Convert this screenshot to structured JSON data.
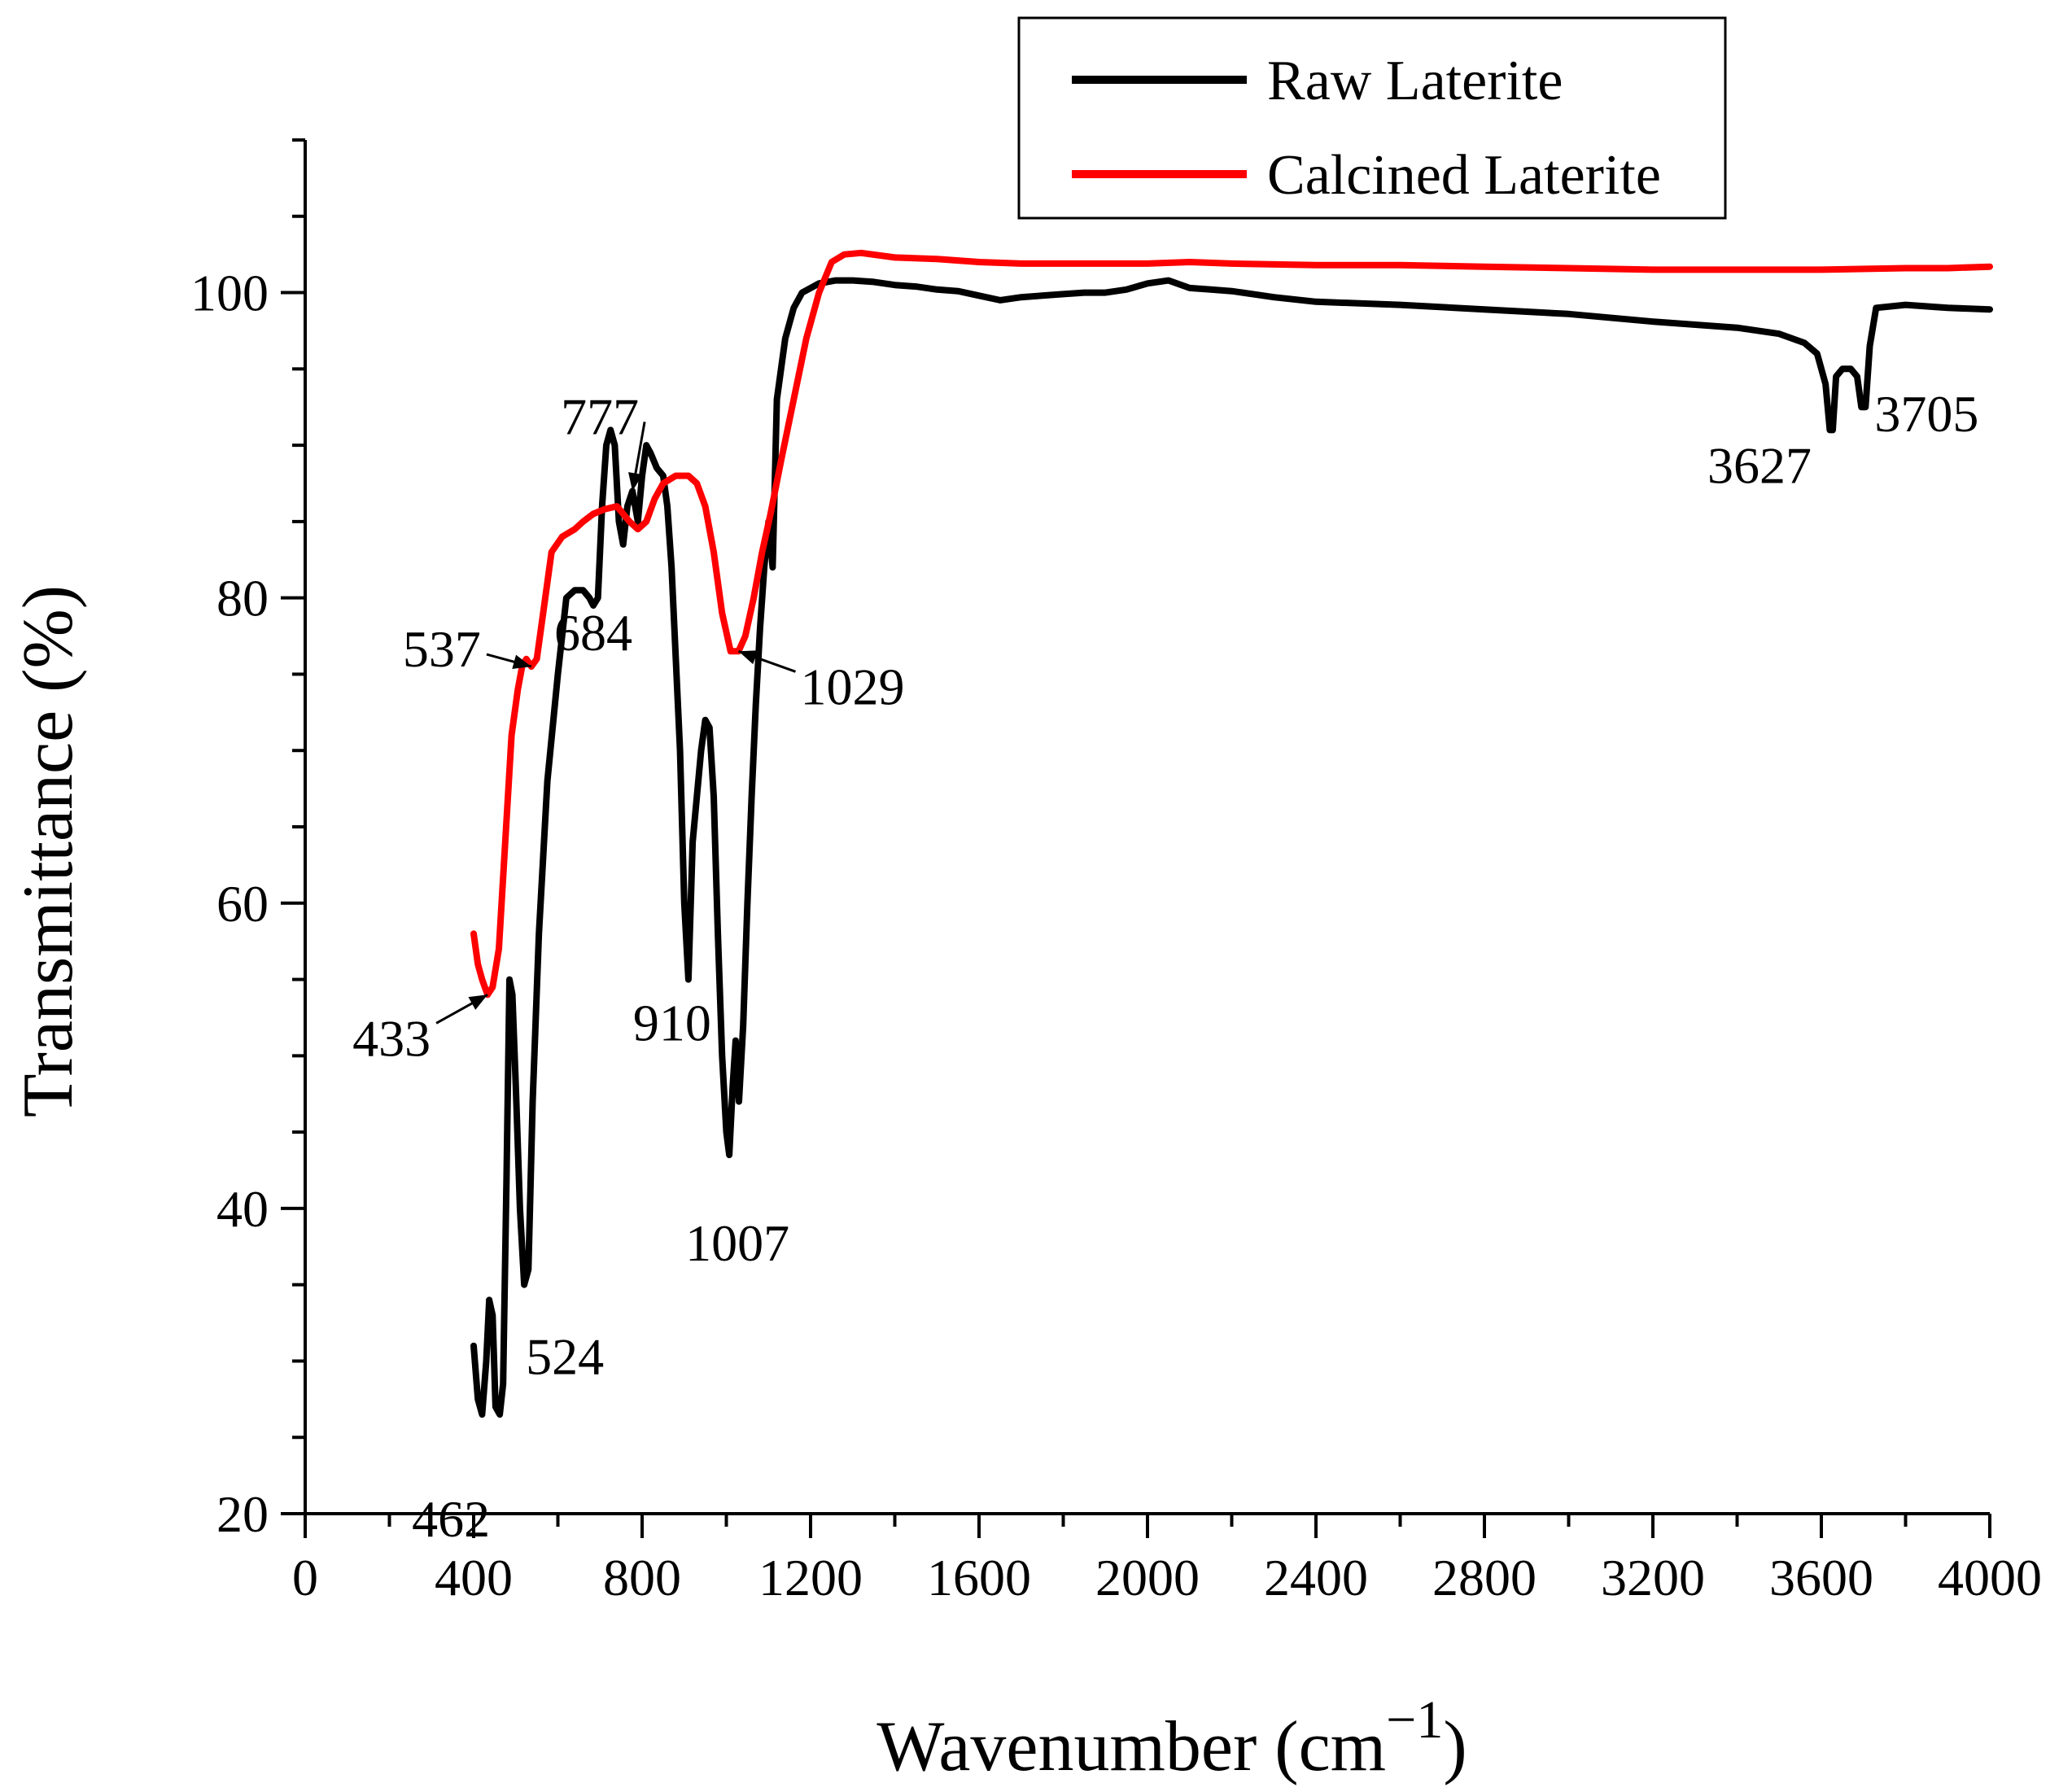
{
  "chart_data": {
    "type": "line",
    "title": "",
    "xlabel": "Wavenumber (cm",
    "xlabel_superscript": "−1",
    "xlabel_close": ")",
    "ylabel": "Transmittance (%)",
    "xlim": [
      0,
      4000
    ],
    "ylim": [
      20,
      110
    ],
    "xticks": [
      0,
      400,
      800,
      1200,
      1600,
      2000,
      2400,
      2800,
      3200,
      3600,
      4000
    ],
    "xtick_labels": [
      "0",
      "400",
      "800",
      "1200",
      "1600",
      "2000",
      "2400",
      "2800",
      "3200",
      "3600",
      "4000"
    ],
    "yticks": [
      20,
      40,
      60,
      80,
      100
    ],
    "ytick_labels": [
      "20",
      "40",
      "60",
      "80",
      "100"
    ],
    "grid": false,
    "legend_position": "top-right",
    "series": [
      {
        "name": "Raw Laterite",
        "color": "#000000",
        "points": [
          [
            400,
            31
          ],
          [
            410,
            27.5
          ],
          [
            420,
            26.5
          ],
          [
            430,
            30
          ],
          [
            437,
            34
          ],
          [
            445,
            33
          ],
          [
            452,
            27
          ],
          [
            462,
            26.5
          ],
          [
            470,
            28.5
          ],
          [
            478,
            42
          ],
          [
            485,
            55
          ],
          [
            492,
            54
          ],
          [
            500,
            48
          ],
          [
            510,
            40
          ],
          [
            520,
            35
          ],
          [
            530,
            36
          ],
          [
            540,
            47
          ],
          [
            555,
            58
          ],
          [
            575,
            68
          ],
          [
            600,
            75
          ],
          [
            620,
            80
          ],
          [
            640,
            80.5
          ],
          [
            660,
            80.5
          ],
          [
            675,
            80
          ],
          [
            684,
            79.5
          ],
          [
            695,
            80
          ],
          [
            705,
            86
          ],
          [
            715,
            90
          ],
          [
            725,
            91
          ],
          [
            735,
            90
          ],
          [
            745,
            85
          ],
          [
            755,
            83.5
          ],
          [
            765,
            86
          ],
          [
            777,
            87
          ],
          [
            790,
            85
          ],
          [
            800,
            88
          ],
          [
            810,
            90
          ],
          [
            820,
            89.5
          ],
          [
            835,
            88.5
          ],
          [
            850,
            88
          ],
          [
            860,
            86
          ],
          [
            870,
            82
          ],
          [
            880,
            76
          ],
          [
            890,
            70
          ],
          [
            900,
            60
          ],
          [
            910,
            55
          ],
          [
            920,
            64
          ],
          [
            930,
            67
          ],
          [
            940,
            70
          ],
          [
            950,
            72
          ],
          [
            960,
            71.5
          ],
          [
            970,
            67
          ],
          [
            980,
            58
          ],
          [
            990,
            50
          ],
          [
            1000,
            45
          ],
          [
            1007,
            43.5
          ],
          [
            1015,
            48
          ],
          [
            1022,
            51
          ],
          [
            1030,
            47
          ],
          [
            1040,
            52
          ],
          [
            1050,
            60
          ],
          [
            1060,
            67
          ],
          [
            1070,
            73
          ],
          [
            1080,
            78
          ],
          [
            1090,
            82
          ],
          [
            1100,
            85
          ],
          [
            1110,
            82
          ],
          [
            1120,
            93
          ],
          [
            1140,
            97
          ],
          [
            1160,
            99
          ],
          [
            1180,
            100
          ],
          [
            1220,
            100.6
          ],
          [
            1260,
            100.8
          ],
          [
            1300,
            100.8
          ],
          [
            1350,
            100.7
          ],
          [
            1400,
            100.5
          ],
          [
            1450,
            100.4
          ],
          [
            1500,
            100.2
          ],
          [
            1550,
            100.1
          ],
          [
            1600,
            99.8
          ],
          [
            1650,
            99.5
          ],
          [
            1700,
            99.7
          ],
          [
            1750,
            99.8
          ],
          [
            1800,
            99.9
          ],
          [
            1850,
            100
          ],
          [
            1900,
            100
          ],
          [
            1950,
            100.2
          ],
          [
            2000,
            100.6
          ],
          [
            2050,
            100.8
          ],
          [
            2100,
            100.3
          ],
          [
            2150,
            100.2
          ],
          [
            2200,
            100.1
          ],
          [
            2300,
            99.7
          ],
          [
            2400,
            99.4
          ],
          [
            2600,
            99.2
          ],
          [
            2800,
            98.9
          ],
          [
            3000,
            98.6
          ],
          [
            3200,
            98.1
          ],
          [
            3400,
            97.7
          ],
          [
            3500,
            97.3
          ],
          [
            3560,
            96.7
          ],
          [
            3590,
            96
          ],
          [
            3610,
            94
          ],
          [
            3620,
            91
          ],
          [
            3627,
            91
          ],
          [
            3635,
            94.5
          ],
          [
            3650,
            95
          ],
          [
            3670,
            95
          ],
          [
            3685,
            94.5
          ],
          [
            3695,
            92.5
          ],
          [
            3705,
            92.5
          ],
          [
            3715,
            96.5
          ],
          [
            3730,
            99
          ],
          [
            3800,
            99.2
          ],
          [
            3900,
            99
          ],
          [
            4000,
            98.9
          ]
        ]
      },
      {
        "name": "Calcined Laterite",
        "color": "#ff0000",
        "points": [
          [
            400,
            58
          ],
          [
            410,
            56
          ],
          [
            420,
            55
          ],
          [
            433,
            54
          ],
          [
            445,
            54.5
          ],
          [
            460,
            57
          ],
          [
            475,
            64
          ],
          [
            490,
            71
          ],
          [
            505,
            74
          ],
          [
            515,
            75.5
          ],
          [
            525,
            76
          ],
          [
            537,
            75.5
          ],
          [
            550,
            76
          ],
          [
            565,
            79
          ],
          [
            585,
            83
          ],
          [
            610,
            84
          ],
          [
            640,
            84.5
          ],
          [
            660,
            85
          ],
          [
            684,
            85.5
          ],
          [
            710,
            85.8
          ],
          [
            740,
            86
          ],
          [
            770,
            85
          ],
          [
            790,
            84.5
          ],
          [
            810,
            85
          ],
          [
            830,
            86.5
          ],
          [
            850,
            87.5
          ],
          [
            880,
            88
          ],
          [
            910,
            88
          ],
          [
            930,
            87.5
          ],
          [
            950,
            86
          ],
          [
            970,
            83
          ],
          [
            990,
            79
          ],
          [
            1010,
            76.5
          ],
          [
            1029,
            76.5
          ],
          [
            1045,
            77.5
          ],
          [
            1065,
            80
          ],
          [
            1085,
            83
          ],
          [
            1105,
            85.5
          ],
          [
            1130,
            89
          ],
          [
            1160,
            93
          ],
          [
            1190,
            97
          ],
          [
            1220,
            100
          ],
          [
            1250,
            102
          ],
          [
            1280,
            102.5
          ],
          [
            1320,
            102.6
          ],
          [
            1400,
            102.3
          ],
          [
            1500,
            102.2
          ],
          [
            1600,
            102
          ],
          [
            1700,
            101.9
          ],
          [
            1800,
            101.9
          ],
          [
            1900,
            101.9
          ],
          [
            2000,
            101.9
          ],
          [
            2100,
            102
          ],
          [
            2200,
            101.9
          ],
          [
            2400,
            101.8
          ],
          [
            2600,
            101.8
          ],
          [
            2800,
            101.7
          ],
          [
            3000,
            101.6
          ],
          [
            3200,
            101.5
          ],
          [
            3400,
            101.5
          ],
          [
            3600,
            101.5
          ],
          [
            3800,
            101.6
          ],
          [
            3900,
            101.6
          ],
          [
            4000,
            101.7
          ]
        ]
      }
    ],
    "annotations": [
      {
        "text": "433",
        "x": 433,
        "y": 54
      },
      {
        "text": "462",
        "x": 462,
        "y": 26.5
      },
      {
        "text": "524",
        "x": 524,
        "y": 35
      },
      {
        "text": "537",
        "x": 537,
        "y": 75.5
      },
      {
        "text": "684",
        "x": 684,
        "y": 79.5
      },
      {
        "text": "777",
        "x": 777,
        "y": 87
      },
      {
        "text": "910",
        "x": 910,
        "y": 55
      },
      {
        "text": "1007",
        "x": 1007,
        "y": 43.5
      },
      {
        "text": "1029",
        "x": 1029,
        "y": 76.5
      },
      {
        "text": "3627",
        "x": 3627,
        "y": 91
      },
      {
        "text": "3705",
        "x": 3705,
        "y": 92.5
      }
    ]
  }
}
